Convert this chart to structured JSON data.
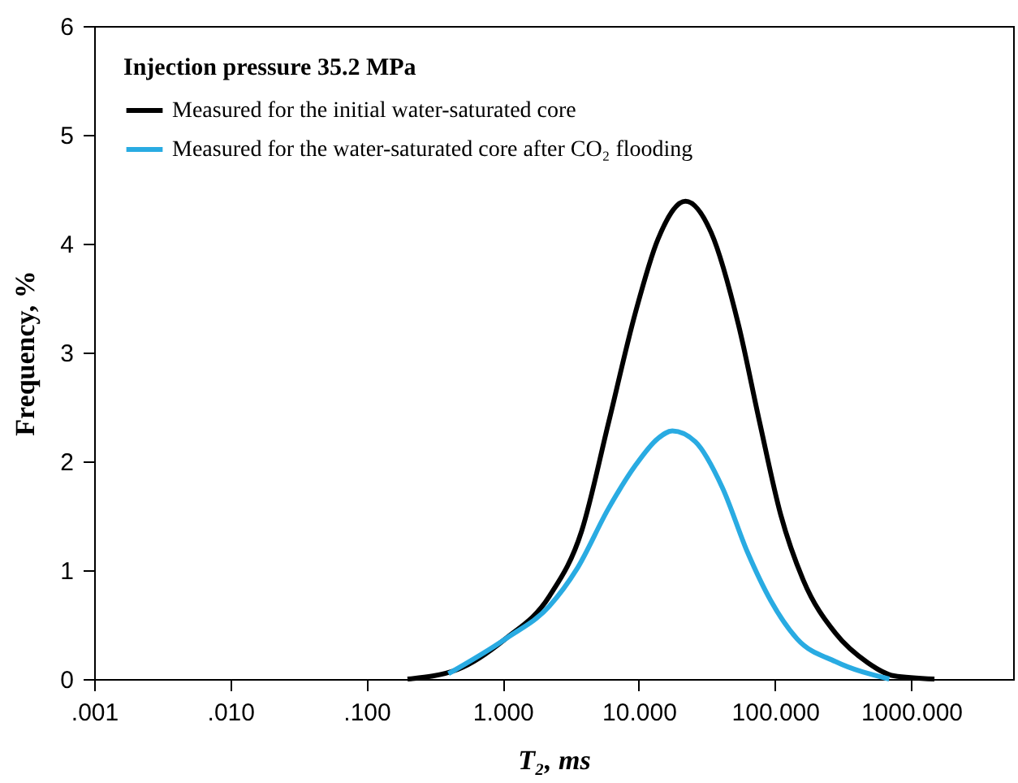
{
  "chart_data": {
    "type": "line",
    "xlabel": "T₂, ms",
    "ylabel": "Frequency, %",
    "legend_title": "Injection pressure 35.2 MPa",
    "legend": "top left",
    "log": "x",
    "grid": false,
    "marker": "none",
    "line_style": "solid",
    "xlim": [
      0.001,
      5600
    ],
    "xticks": [
      {
        "value": 0.001,
        "label": ".001"
      },
      {
        "value": 0.01,
        "label": ".010"
      },
      {
        "value": 0.1,
        "label": ".100"
      },
      {
        "value": 1,
        "label": "1.000"
      },
      {
        "value": 10,
        "label": "10.000"
      },
      {
        "value": 100,
        "label": "100.000"
      },
      {
        "value": 1000,
        "label": "1000.000"
      }
    ],
    "ylim": [
      0,
      6
    ],
    "yticks": [
      0,
      1,
      2,
      3,
      4,
      5,
      6
    ],
    "series": [
      {
        "name": "Measured for the initial water-saturated core",
        "color": "#000000",
        "x": [
          0.2,
          0.47,
          1.05,
          2.2,
          3.8,
          6.0,
          9.4,
          13.8,
          22,
          34,
          54,
          77,
          110,
          161,
          278,
          480,
          745,
          1480
        ],
        "values": [
          0.0,
          0.09,
          0.37,
          0.76,
          1.36,
          2.36,
          3.36,
          4.04,
          4.39,
          4.1,
          3.25,
          2.36,
          1.51,
          0.91,
          0.42,
          0.15,
          0.03,
          0.0
        ]
      },
      {
        "name": "Measured for the water-saturated core after CO₂ flooding",
        "color": "#29abe2",
        "x": [
          0.4,
          1.05,
          2.2,
          3.5,
          6.0,
          9.4,
          13.8,
          17.6,
          26,
          41,
          63,
          93,
          145,
          278,
          690
        ],
        "values": [
          0.05,
          0.37,
          0.67,
          1.01,
          1.57,
          1.96,
          2.21,
          2.28,
          2.18,
          1.76,
          1.16,
          0.72,
          0.37,
          0.16,
          0.0
        ]
      }
    ]
  }
}
